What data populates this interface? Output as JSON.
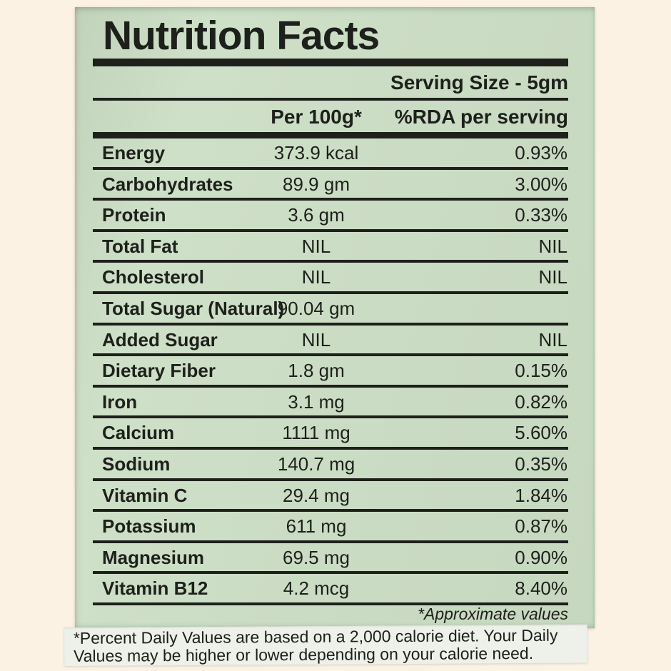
{
  "label": {
    "title": "Nutrition Facts",
    "serving_size": "Serving Size - 5gm",
    "columns": {
      "value_header": "Per 100g*",
      "rda_header": "%RDA per serving"
    },
    "rows": [
      {
        "name": "Energy",
        "value": "373.9 kcal",
        "rda": "0.93%"
      },
      {
        "name": "Carbohydrates",
        "value": "89.9 gm",
        "rda": "3.00%"
      },
      {
        "name": "Protein",
        "value": "3.6 gm",
        "rda": "0.33%"
      },
      {
        "name": "Total Fat",
        "value": "NIL",
        "rda": "NIL"
      },
      {
        "name": "Cholesterol",
        "value": "NIL",
        "rda": "NIL"
      },
      {
        "name": "Total Sugar (Natural)",
        "value": "90.04 gm",
        "rda": ""
      },
      {
        "name": "Added Sugar",
        "value": "NIL",
        "rda": "NIL"
      },
      {
        "name": "Dietary Fiber",
        "value": "1.8 gm",
        "rda": "0.15%"
      },
      {
        "name": "Iron",
        "value": "3.1 mg",
        "rda": "0.82%"
      },
      {
        "name": "Calcium",
        "value": "1111 mg",
        "rda": "5.60%"
      },
      {
        "name": "Sodium",
        "value": "140.7 mg",
        "rda": "0.35%"
      },
      {
        "name": "Vitamin C",
        "value": "29.4 mg",
        "rda": "1.84%"
      },
      {
        "name": "Potassium",
        "value": "611 mg",
        "rda": "0.87%"
      },
      {
        "name": "Magnesium",
        "value": "69.5 mg",
        "rda": "0.90%"
      },
      {
        "name": "Vitamin B12",
        "value": "4.2 mcg",
        "rda": "8.40%"
      }
    ],
    "approx_note": "*Approximate values"
  },
  "footnote": {
    "line1": "*Percent Daily Values are based on a 2,000 calorie diet. Your Daily",
    "line2": "Values may be higher or lower depending on your calorie need."
  },
  "colors": {
    "page_bg": "#fbf2e4",
    "label_bg": "#cbdcc4",
    "ink": "#1d201b",
    "strip_bg": "#eef1e9"
  }
}
